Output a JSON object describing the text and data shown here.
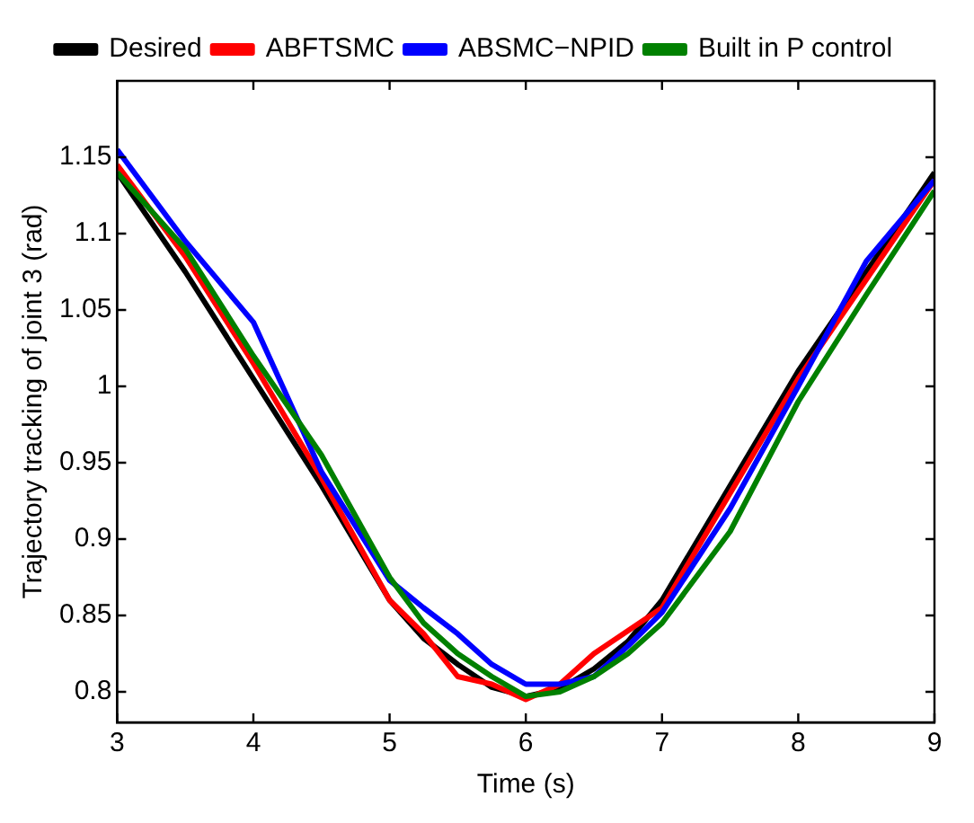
{
  "chart_data": {
    "type": "line",
    "xlabel": "Time (s)",
    "ylabel": "Trajectory tracking of joint 3 (rad)",
    "xlim": [
      3,
      9
    ],
    "xticks": [
      3,
      4,
      5,
      6,
      7,
      8,
      9
    ],
    "ylim": [
      0.78,
      1.2
    ],
    "yticks": [
      0.8,
      0.85,
      0.9,
      0.95,
      1,
      1.05,
      1.1,
      1.15
    ],
    "grid": false,
    "legend": "top",
    "marker": "none",
    "line_style": "solid",
    "x": [
      3,
      3.5,
      4,
      4.5,
      5,
      5.25,
      5.5,
      5.75,
      6,
      6.25,
      6.5,
      6.75,
      7,
      7.5,
      8,
      8.5,
      9
    ],
    "series": [
      {
        "name": "Desired",
        "color": "#000000",
        "values": [
          1.14,
          1.075,
          1.005,
          0.935,
          0.86,
          0.835,
          0.818,
          0.803,
          0.797,
          0.802,
          0.815,
          0.833,
          0.86,
          0.935,
          1.01,
          1.075,
          1.14
        ]
      },
      {
        "name": "ABFTSMC",
        "color": "#ff0000",
        "values": [
          1.145,
          1.085,
          1.015,
          0.94,
          0.86,
          0.838,
          0.81,
          0.805,
          0.795,
          0.805,
          0.825,
          0.84,
          0.855,
          0.93,
          1.005,
          1.07,
          1.135
        ]
      },
      {
        "name": "ABSMC−NPID",
        "color": "#0000ff",
        "values": [
          1.155,
          1.095,
          1.042,
          0.944,
          0.873,
          0.855,
          0.838,
          0.818,
          0.805,
          0.805,
          0.81,
          0.83,
          0.852,
          0.92,
          1.0,
          1.082,
          1.135
        ]
      },
      {
        "name": "Built in P control",
        "color": "#008000",
        "values": [
          1.14,
          1.09,
          1.02,
          0.955,
          0.875,
          0.845,
          0.825,
          0.81,
          0.797,
          0.8,
          0.81,
          0.825,
          0.845,
          0.905,
          0.99,
          1.06,
          1.128
        ]
      }
    ]
  }
}
